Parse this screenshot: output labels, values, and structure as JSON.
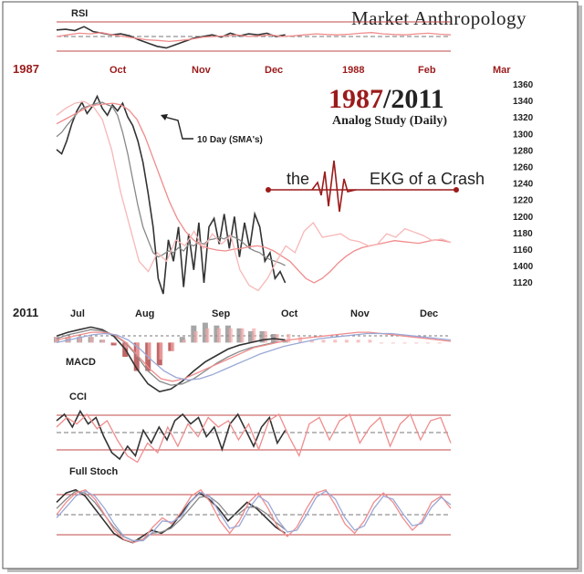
{
  "brand": "Market Anthropology",
  "title": {
    "year_a": "1987",
    "separator": "/",
    "year_b": "2011",
    "subtitle": "Analog Study (Daily)"
  },
  "annotations": {
    "sma": "10 Day (SMA's)",
    "ekg_left": "the",
    "ekg_right": "EKG of a Crash"
  },
  "colors": {
    "red_dark": "#9b1b1b",
    "pink": "#f08c8c",
    "pink_light": "#f7b7b7",
    "black_line": "#333333",
    "grey_line": "#888888",
    "blue_line": "#9aa8d6",
    "band_line": "#c24a4a"
  },
  "axes": {
    "top_year": "1987",
    "top_months": [
      "Oct",
      "Nov",
      "Dec",
      "1988",
      "Feb",
      "Mar"
    ],
    "bottom_year": "2011",
    "bottom_months": [
      "Jul",
      "Aug",
      "Sep",
      "Oct",
      "Nov",
      "Dec"
    ],
    "price_ticks": [
      "1360",
      "1340",
      "1320",
      "1300",
      "1280",
      "1260",
      "1240",
      "1220",
      "1200",
      "1180",
      "1160",
      "1400",
      "1120"
    ]
  },
  "chart_data": [
    {
      "type": "line",
      "panel": "main-price",
      "ylim": [
        1120,
        1360
      ],
      "series": [
        {
          "color": "black",
          "values": [
            1290,
            1285,
            1300,
            1320,
            1335,
            1345,
            1332,
            1340,
            1352,
            1338,
            1330,
            1342,
            1335,
            1344,
            1328,
            1318,
            1300,
            1275,
            1240,
            1200,
            1140,
            1122,
            1185,
            1160,
            1200,
            1130,
            1192,
            1150,
            1205,
            1135,
            1200,
            1210,
            1180,
            1215,
            1175,
            1212,
            1165,
            1205,
            1175,
            1215,
            1200,
            1160,
            1170,
            1140,
            1148,
            1135
          ]
        },
        {
          "color": "grey",
          "values": [
            1305,
            1310,
            1318,
            1325,
            1332,
            1338,
            1340,
            1342,
            1344,
            1345,
            1342,
            1340,
            1330,
            1310,
            1285,
            1255,
            1225,
            1200,
            1185,
            1170,
            1165,
            1168,
            1172,
            1170,
            1176,
            1172,
            1180,
            1178,
            1182,
            1180,
            1185,
            1186,
            1188,
            1186,
            1190,
            1188,
            1185,
            1180,
            1175,
            1172,
            1170,
            1165,
            1162,
            1160,
            1158,
            1155
          ]
        },
        {
          "color": "pink",
          "values": [
            1320,
            1325,
            1330,
            1335,
            1340,
            1342,
            1343,
            1344,
            1342,
            1336,
            1325,
            1305,
            1280,
            1255,
            1230,
            1210,
            1195,
            1185,
            1178,
            1175,
            1173,
            1172,
            1174,
            1175,
            1177,
            1178,
            1176,
            1172,
            1166,
            1160,
            1150,
            1140,
            1135,
            1140,
            1148,
            1158,
            1166,
            1172,
            1176,
            1178,
            1180,
            1182,
            1184,
            1183,
            1182,
            1181,
            1183,
            1185,
            1184,
            1182
          ]
        },
        {
          "color": "red",
          "values": [
            1330,
            1338,
            1344,
            1346,
            1340,
            1325,
            1290,
            1240,
            1200,
            1160,
            1148,
            1170,
            1160,
            1185,
            1178,
            1195,
            1175,
            1192,
            1180,
            1190,
            1150,
            1132,
            1126,
            1140,
            1160,
            1178,
            1170,
            1195,
            1205,
            1188,
            1190,
            1192,
            1185,
            1183,
            1178,
            1180,
            1192,
            1188,
            1198,
            1194,
            1190,
            1184,
            1186,
            1182
          ]
        }
      ]
    },
    {
      "type": "line",
      "panel": "rsi-1987",
      "ylim": [
        0,
        100
      ],
      "series": [
        {
          "color": "black",
          "values": [
            70,
            72,
            68,
            80,
            65,
            60,
            55,
            58,
            52,
            40,
            30,
            20,
            15,
            25,
            35,
            45,
            50,
            55,
            48,
            60,
            52,
            58,
            55,
            60,
            50,
            55
          ]
        },
        {
          "color": "pink",
          "values": [
            50,
            55,
            60,
            58,
            62,
            55,
            50,
            45,
            40,
            38,
            35,
            38,
            42,
            48,
            50,
            52,
            55,
            50,
            52,
            55,
            50,
            52,
            55,
            58,
            56,
            55,
            57,
            60,
            62,
            58,
            56,
            55,
            58,
            60,
            57,
            55
          ]
        }
      ]
    },
    {
      "type": "line",
      "panel": "macd-2011",
      "ylim": [
        -40,
        25
      ],
      "series": [
        {
          "color": "black",
          "values": [
            5,
            8,
            10,
            12,
            10,
            5,
            -5,
            -20,
            -32,
            -38,
            -36,
            -30,
            -22,
            -15,
            -10,
            -5,
            -2,
            0,
            2,
            3,
            2
          ]
        },
        {
          "color": "grey",
          "values": [
            3,
            6,
            8,
            10,
            9,
            6,
            0,
            -10,
            -22,
            -30,
            -33,
            -32,
            -28,
            -22,
            -16,
            -11,
            -7,
            -4,
            -2,
            0,
            1
          ]
        },
        {
          "color": "pink",
          "values": [
            2,
            4,
            6,
            8,
            8,
            6,
            0,
            -10,
            -20,
            -28,
            -30,
            -28,
            -24,
            -20,
            -16,
            -12,
            -8,
            -4,
            -2,
            0,
            2,
            3,
            4,
            5,
            6,
            7,
            8,
            8,
            7,
            6,
            5,
            4,
            3,
            2,
            1
          ]
        },
        {
          "color": "blue",
          "values": [
            0,
            2,
            4,
            6,
            7,
            6,
            2,
            -5,
            -14,
            -22,
            -27,
            -29,
            -28,
            -25,
            -21,
            -17,
            -13,
            -9,
            -6,
            -3,
            -1,
            1,
            3,
            4,
            5,
            6,
            7,
            7,
            7,
            6,
            5,
            4,
            3,
            2
          ]
        }
      ]
    },
    {
      "type": "line",
      "panel": "cci-2011",
      "ylim": [
        -200,
        200
      ],
      "series": [
        {
          "color": "black",
          "values": [
            80,
            120,
            40,
            140,
            60,
            100,
            -20,
            -120,
            -160,
            -80,
            -140,
            20,
            -60,
            40,
            -40,
            80,
            120,
            60,
            100,
            -20,
            40,
            -100,
            60,
            120,
            20,
            -80,
            40,
            100,
            -60,
            20
          ]
        },
        {
          "color": "pink",
          "values": [
            40,
            100,
            60,
            120,
            30,
            80,
            -40,
            -140,
            -180,
            -60,
            -120,
            40,
            -80,
            60,
            -20,
            100,
            40,
            80,
            -40,
            60,
            -100,
            80,
            120,
            -20,
            -140,
            60,
            100,
            -40,
            80,
            120,
            -60,
            40,
            100,
            -80,
            60,
            120,
            -40,
            80,
            100,
            -60
          ]
        }
      ]
    },
    {
      "type": "line",
      "panel": "stoch-2011",
      "ylim": [
        0,
        100
      ],
      "series": [
        {
          "color": "black",
          "values": [
            70,
            85,
            90,
            80,
            60,
            40,
            20,
            10,
            5,
            15,
            25,
            20,
            30,
            50,
            70,
            85,
            75,
            60,
            40,
            55,
            70,
            60,
            45,
            30,
            20
          ]
        },
        {
          "color": "grey",
          "values": [
            60,
            75,
            88,
            85,
            70,
            50,
            30,
            15,
            8,
            10,
            20,
            22,
            28,
            42,
            60,
            78,
            80,
            68,
            50,
            50,
            62,
            62,
            52,
            38,
            26
          ]
        },
        {
          "color": "pink",
          "values": [
            50,
            70,
            85,
            90,
            75,
            50,
            25,
            10,
            5,
            10,
            30,
            45,
            35,
            55,
            80,
            90,
            70,
            40,
            20,
            40,
            70,
            85,
            60,
            30,
            15,
            30,
            60,
            85,
            90,
            65,
            35,
            20,
            40,
            70,
            85,
            70,
            45,
            25,
            40,
            70,
            80,
            60
          ]
        },
        {
          "color": "blue",
          "values": [
            45,
            62,
            80,
            88,
            80,
            60,
            35,
            15,
            8,
            8,
            22,
            40,
            38,
            48,
            72,
            86,
            78,
            52,
            28,
            32,
            60,
            80,
            70,
            42,
            22,
            25,
            50,
            78,
            88,
            75,
            45,
            25,
            32,
            60,
            80,
            75,
            52,
            32,
            36,
            62,
            78,
            66
          ]
        }
      ]
    }
  ],
  "panel_labels": {
    "rsi": "RSI",
    "macd": "MACD",
    "cci": "CCI",
    "stoch": "Full Stoch"
  }
}
